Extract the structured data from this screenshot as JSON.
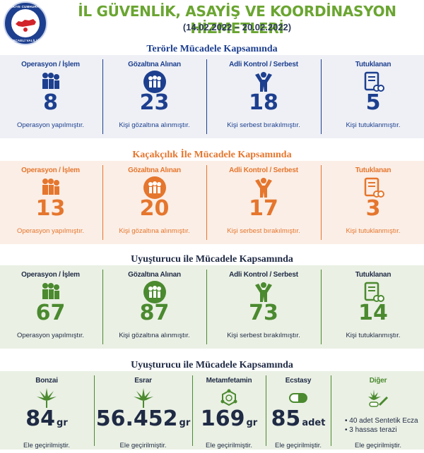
{
  "header": {
    "logo_top": "TÜRKİYE CUMHURİYETİ",
    "logo_bottom": "KOCAELİ VALİLİĞİ",
    "title": "İL GÜVENLİK, ASAYİŞ VE KOORDİNASYON HİZMETLERİ",
    "dates": "(14.02.2022 – 20.02.2022)"
  },
  "colors": {
    "blue": "#1d3f8f",
    "orange": "#e5762d",
    "green": "#4b8a2f",
    "title_green": "#6aa531"
  },
  "terror": {
    "title": "Terörle Mücadele Kapsamında",
    "cards": [
      {
        "label": "Operasyon / İşlem",
        "icon": "police-raid-icon",
        "value": "8",
        "desc": "Operasyon yapılmıştır."
      },
      {
        "label": "Gözaltına Alınan",
        "icon": "detained-people-icon",
        "value": "23",
        "desc": "Kişi gözaltına alınmıştır."
      },
      {
        "label": "Adli Kontrol / Serbest",
        "icon": "freed-person-icon",
        "value": "18",
        "desc": "Kişi serbest bırakılmıştır."
      },
      {
        "label": "Tutuklanan",
        "icon": "arrest-document-icon",
        "value": "5",
        "desc": "Kişi tutuklanmıştır."
      }
    ]
  },
  "smuggling": {
    "title": "Kaçakçılık İle Mücadele Kapsamında",
    "cards": [
      {
        "label": "Operasyon / İşlem",
        "icon": "police-raid-icon",
        "value": "13",
        "desc": "Operasyon yapılmıştır."
      },
      {
        "label": "Gözaltına Alınan",
        "icon": "detained-people-icon",
        "value": "20",
        "desc": "Kişi gözaltına alınmıştır."
      },
      {
        "label": "Adli Kontrol / Serbest",
        "icon": "freed-person-icon",
        "value": "17",
        "desc": "Kişi serbest bırakılmıştır."
      },
      {
        "label": "Tutuklanan",
        "icon": "arrest-document-icon",
        "value": "3",
        "desc": "Kişi tutuklanmıştır."
      }
    ]
  },
  "narcotics": {
    "title": "Uyuşturucu ile Mücadele Kapsamında",
    "cards": [
      {
        "label": "Operasyon / İşlem",
        "icon": "police-raid-icon",
        "value": "67",
        "desc": "Operasyon yapılmıştır."
      },
      {
        "label": "Gözaltına Alınan",
        "icon": "detained-people-icon",
        "value": "87",
        "desc": "Kişi gözaltına alınmıştır."
      },
      {
        "label": "Adli Kontrol / Serbest",
        "icon": "freed-person-icon",
        "value": "73",
        "desc": "Kişi serbest bırakılmıştır."
      },
      {
        "label": "Tutuklanan",
        "icon": "arrest-document-icon",
        "value": "14",
        "desc": "Kişi tutuklanmıştır."
      }
    ]
  },
  "seizures": {
    "title": "Uyuşturucu ile  Mücadele Kapsamında",
    "cards": [
      {
        "label": "Bonzai",
        "icon": "cannabis-leaf-icon",
        "value": "84",
        "unit": "gr",
        "desc": "Ele geçirilmiştir."
      },
      {
        "label": "Esrar",
        "icon": "cannabis-leaf-icon",
        "value": "56.452",
        "unit": "gr",
        "desc": "Ele geçirilmiştir."
      },
      {
        "label": "Metamfetamin",
        "icon": "molecule-icon",
        "value": "169",
        "unit": "gr",
        "desc": "Ele geçirilmiştir."
      },
      {
        "label": "Ecstasy",
        "icon": "pill-capsule-icon",
        "value": "85",
        "unit": "adet",
        "desc": "Ele geçirilmiştir."
      },
      {
        "label": "Diğer",
        "icon": "drugs-mixed-icon",
        "items": [
          "40 adet Sentetik Ecza",
          "3 hassas terazi"
        ],
        "desc": "Ele geçirilmiştir."
      }
    ]
  }
}
